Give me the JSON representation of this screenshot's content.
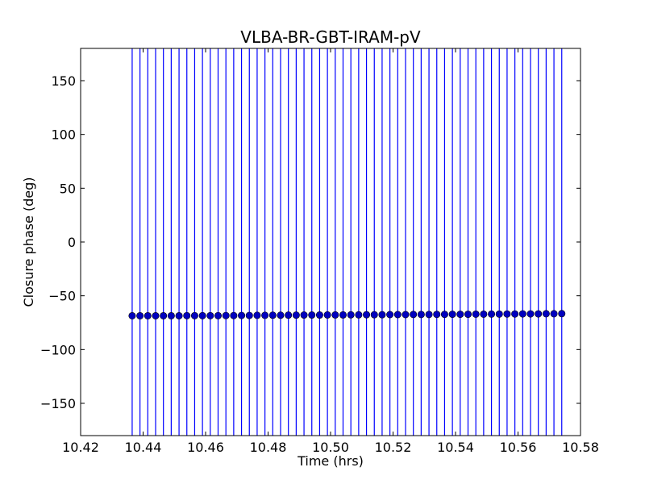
{
  "chart_data": {
    "type": "scatter",
    "title": "VLBA-BR-GBT-IRAM-pV",
    "xlabel": "Time (hrs)",
    "ylabel": "Closure phase (deg)",
    "xlim": [
      10.42,
      10.58
    ],
    "ylim": [
      -180,
      180
    ],
    "xticks": [
      "10.42",
      "10.44",
      "10.46",
      "10.48",
      "10.50",
      "10.52",
      "10.54",
      "10.56",
      "10.58"
    ],
    "yticks": [
      "−150",
      "−100",
      "−50",
      "0",
      "50",
      "100",
      "150"
    ],
    "grid": false,
    "marker_color": "#0000bf",
    "errorbar_color": "#0000ff",
    "errorbar_extent": "beyond axis limits (±180)",
    "series": [
      {
        "x": [
          10.4365,
          10.439,
          10.4415,
          10.444,
          10.4465,
          10.449,
          10.4515,
          10.454,
          10.4565,
          10.459,
          10.4615,
          10.464,
          10.4665,
          10.469,
          10.4715,
          10.474,
          10.4765,
          10.479,
          10.4815,
          10.484,
          10.4865,
          10.489,
          10.4915,
          10.494,
          10.4965,
          10.499,
          10.5015,
          10.504,
          10.5065,
          10.509,
          10.5115,
          10.514,
          10.5165,
          10.519,
          10.5215,
          10.524,
          10.5265,
          10.529,
          10.5315,
          10.534,
          10.5365,
          10.539,
          10.5415,
          10.544,
          10.5465,
          10.549,
          10.5515,
          10.554,
          10.5565,
          10.559,
          10.5615,
          10.564,
          10.5665,
          10.569,
          10.5715,
          10.574
        ],
        "y": [
          -68.6,
          -68.6,
          -68.6,
          -68.6,
          -68.6,
          -68.6,
          -68.6,
          -68.5,
          -68.5,
          -68.5,
          -68.5,
          -68.5,
          -68.4,
          -68.4,
          -68.3,
          -68.3,
          -68.2,
          -68.2,
          -68.1,
          -68.1,
          -68.0,
          -68.0,
          -67.9,
          -67.9,
          -67.9,
          -67.8,
          -67.8,
          -67.8,
          -67.7,
          -67.7,
          -67.6,
          -67.6,
          -67.6,
          -67.5,
          -67.5,
          -67.5,
          -67.4,
          -67.4,
          -67.4,
          -67.3,
          -67.3,
          -67.2,
          -67.2,
          -67.2,
          -67.1,
          -67.1,
          -67.0,
          -67.0,
          -66.9,
          -66.9,
          -66.8,
          -66.8,
          -66.8,
          -66.7,
          -66.7,
          -66.6
        ]
      }
    ]
  }
}
